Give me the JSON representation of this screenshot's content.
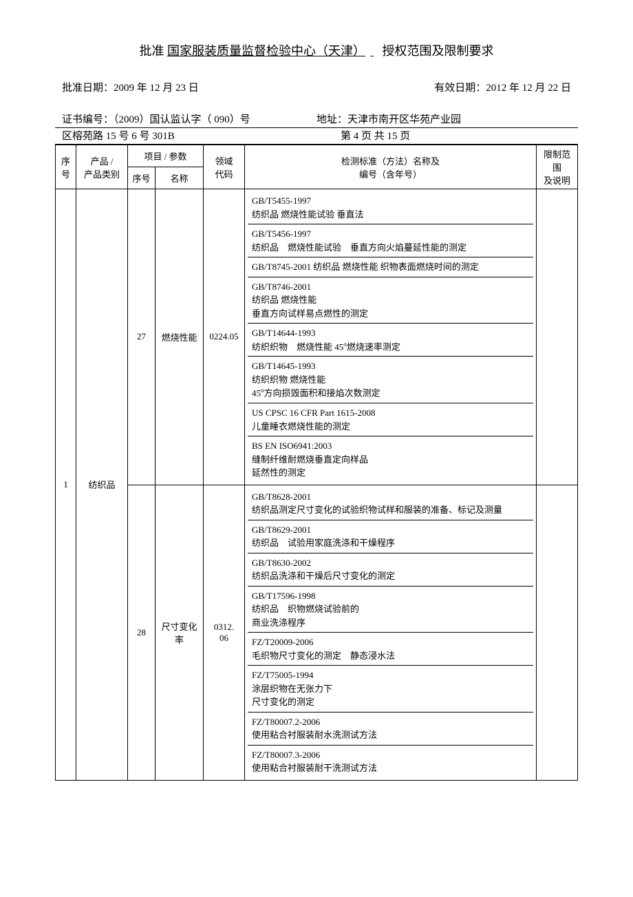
{
  "title": {
    "prefix": "批准",
    "underlined": "国家服装质量监督检验中心（天津）",
    "suffix": "授权范围及限制要求"
  },
  "approval_date_label": "批准日期：",
  "approval_date": "2009 年 12 月 23 日",
  "valid_date_label": "有效日期：",
  "valid_date": "2012 年 12 月 22 日",
  "cert_label": "证书编号：（2009）国认监认字（ 090）号",
  "addr_label": "地址：天津市南开区华苑产业园",
  "addr_line2_left": "区榕苑路 15 号 6 号 301B",
  "page_info": "第 4 页 共 15 页",
  "headers": {
    "seq1": "序",
    "seq2": "号",
    "prod1": "产品 /",
    "prod2": "产品类别",
    "param_group": "项目 / 参数",
    "pseq": "序号",
    "pname": "名称",
    "code1": "领域",
    "code2": "代码",
    "std1": "检测标准（方法）名称及",
    "std2": "编号（含年号）",
    "limit1": "限制范围",
    "limit2": "及说明"
  },
  "seq_no": "1",
  "product": "纺织品",
  "sections": [
    {
      "pseq": "27",
      "pname": "燃烧性能",
      "code": "0224.05",
      "standards": [
        "GB/T5455-1997\n纺织品 燃烧性能试验 垂直法",
        "GB/T5456-1997\n纺织品　燃烧性能试验　垂直方向火焰蔓延性能的测定",
        "GB/T8745-2001 纺织品 燃烧性能 织物表面燃烧时间的测定",
        "GB/T8746-2001\n纺织品 燃烧性能\n垂直方向试样易点燃性的测定",
        "GB/T14644-1993\n纺织织物　燃烧性能 45°燃烧速率测定",
        "GB/T14645-1993\n纺织织物 燃烧性能\n45°方向损毁面积和接焰次数测定",
        "US CPSC 16 CFR Part 1615-2008\n儿童睡衣燃烧性能的测定",
        "BS EN ISO6941:2003\n缝制纤维耐燃烧垂直定向样品\n延然性的测定"
      ]
    },
    {
      "pseq": "28",
      "pname": "尺寸变化率",
      "code": "0312.\n06",
      "standards": [
        "GB/T8628-2001\n纺织品测定尺寸变化的试验织物试样和服装的准备、标记及测量",
        "GB/T8629-2001\n纺织品　试验用家庭洗涤和干燥程序",
        " GB/T8630-2002\n纺织品洗涤和干燥后尺寸变化的测定",
        "GB/T17596-1998\n纺织品　织物燃烧试验前的\n商业洗涤程序",
        "FZ/T20009-2006\n毛织物尺寸变化的测定　静态浸水法",
        " FZ/T75005-1994\n涂层织物在无张力下\n尺寸变化的测定",
        "FZ/T80007.2-2006\n使用粘合衬服装耐水洗测试方法",
        "FZ/T80007.3-2006\n使用粘合衬服装耐干洗测试方法"
      ]
    }
  ]
}
